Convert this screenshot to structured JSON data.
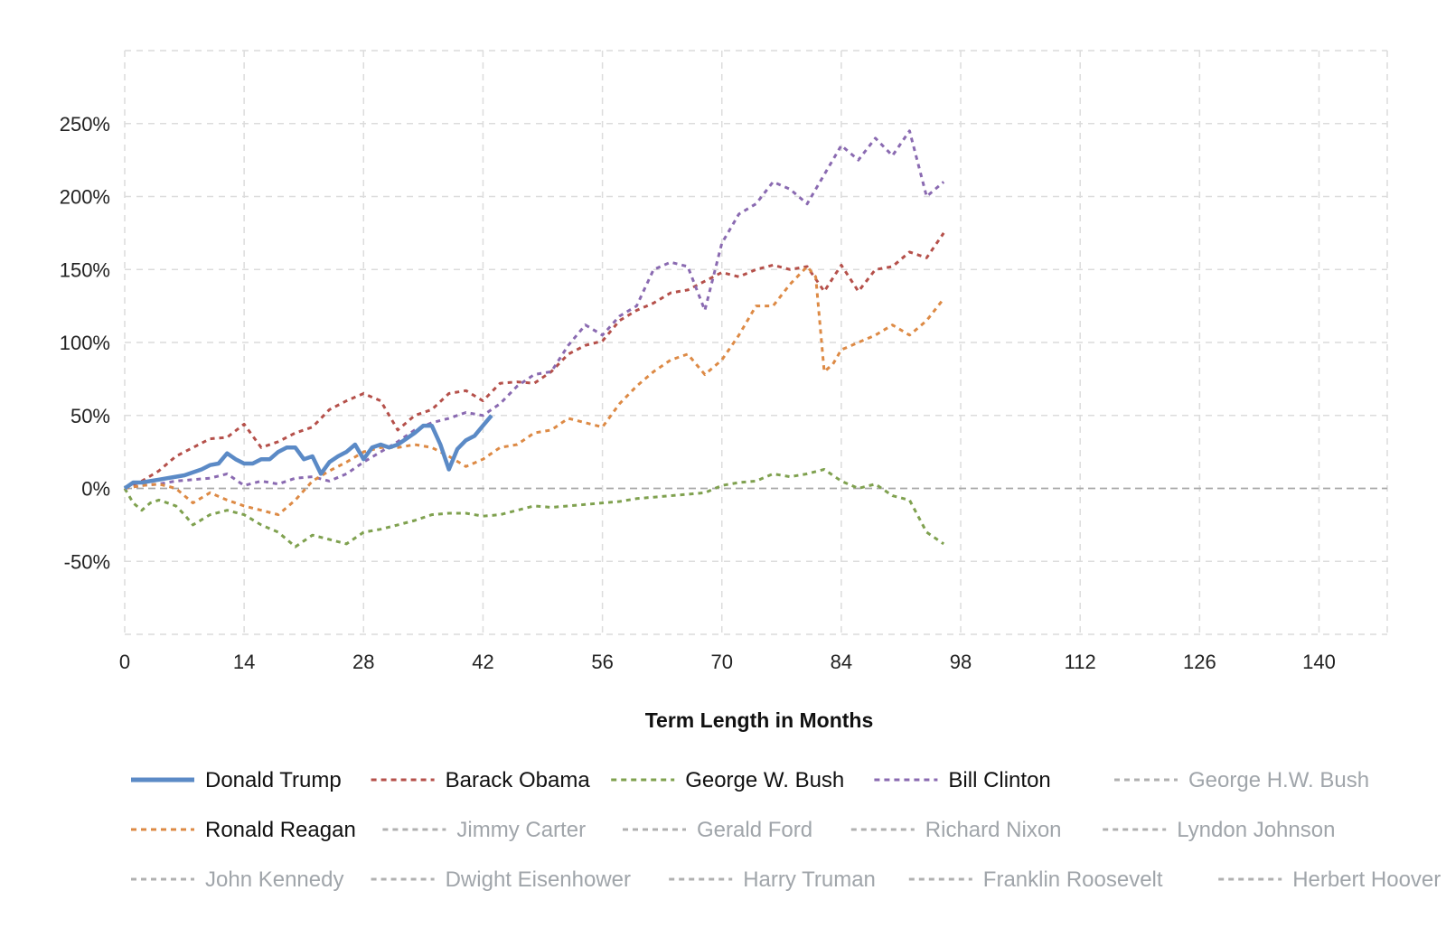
{
  "chart_data": {
    "type": "line",
    "title": "",
    "xlabel": "Term Length in Months",
    "ylabel": "",
    "xlim": [
      0,
      148
    ],
    "ylim": [
      -100,
      300
    ],
    "x_ticks": [
      0,
      14,
      28,
      42,
      56,
      70,
      84,
      98,
      112,
      126,
      140
    ],
    "y_ticks": [
      -50,
      0,
      50,
      100,
      150,
      200,
      250
    ],
    "x_tick_labels": [
      "0",
      "14",
      "28",
      "42",
      "56",
      "70",
      "84",
      "98",
      "112",
      "126",
      "140"
    ],
    "y_tick_labels": [
      "-50%",
      "0%",
      "50%",
      "100%",
      "150%",
      "200%",
      "250%"
    ],
    "grid": true,
    "legend_position": "bottom",
    "series": [
      {
        "name": "Donald Trump",
        "color": "#5b8ac6",
        "style": "solid",
        "active": true,
        "x": [
          0,
          1,
          2,
          3,
          4,
          5,
          6,
          7,
          8,
          9,
          10,
          11,
          12,
          13,
          14,
          15,
          16,
          17,
          18,
          19,
          20,
          21,
          22,
          23,
          24,
          25,
          26,
          27,
          28,
          29,
          30,
          31,
          32,
          33,
          34,
          35,
          36,
          37,
          38,
          39,
          40,
          41,
          42,
          43
        ],
        "y": [
          0,
          4,
          4,
          5,
          6,
          7,
          8,
          9,
          11,
          13,
          16,
          17,
          24,
          20,
          17,
          17,
          20,
          20,
          25,
          28,
          28,
          20,
          22,
          10,
          18,
          22,
          25,
          30,
          20,
          28,
          30,
          28,
          30,
          34,
          38,
          43,
          43,
          30,
          13,
          27,
          33,
          36,
          43,
          50
        ]
      },
      {
        "name": "Barack Obama",
        "color": "#b5504a",
        "style": "dashed",
        "active": true,
        "x": [
          0,
          2,
          4,
          6,
          8,
          10,
          12,
          14,
          16,
          18,
          20,
          22,
          24,
          26,
          28,
          30,
          32,
          34,
          36,
          38,
          40,
          42,
          44,
          46,
          48,
          50,
          52,
          54,
          56,
          58,
          60,
          62,
          64,
          66,
          68,
          70,
          72,
          74,
          76,
          78,
          80,
          82,
          84,
          86,
          88,
          90,
          92,
          94,
          96
        ],
        "y": [
          0,
          5,
          12,
          22,
          28,
          34,
          35,
          44,
          28,
          32,
          38,
          42,
          54,
          60,
          65,
          60,
          40,
          50,
          54,
          65,
          67,
          60,
          72,
          73,
          72,
          80,
          92,
          98,
          101,
          115,
          122,
          127,
          134,
          136,
          142,
          148,
          145,
          150,
          153,
          150,
          152,
          135,
          153,
          135,
          150,
          152,
          162,
          158,
          175
        ]
      },
      {
        "name": "George W. Bush",
        "color": "#7fa14f",
        "style": "dashed",
        "active": true,
        "x": [
          0,
          1,
          2,
          3,
          4,
          5,
          6,
          7,
          8,
          10,
          12,
          14,
          16,
          18,
          20,
          22,
          24,
          26,
          28,
          30,
          32,
          34,
          36,
          38,
          40,
          42,
          44,
          46,
          48,
          50,
          52,
          54,
          56,
          58,
          60,
          62,
          64,
          66,
          68,
          70,
          72,
          74,
          76,
          78,
          80,
          82,
          84,
          86,
          88,
          90,
          92,
          94,
          96
        ],
        "y": [
          0,
          -10,
          -15,
          -10,
          -8,
          -10,
          -12,
          -18,
          -25,
          -18,
          -15,
          -18,
          -25,
          -30,
          -40,
          -32,
          -35,
          -38,
          -30,
          -28,
          -25,
          -22,
          -18,
          -17,
          -17,
          -19,
          -18,
          -15,
          -12,
          -13,
          -12,
          -11,
          -10,
          -9,
          -7,
          -6,
          -5,
          -4,
          -3,
          2,
          4,
          5,
          10,
          8,
          10,
          13,
          5,
          0,
          3,
          -5,
          -8,
          -30,
          -38
        ]
      },
      {
        "name": "Bill Clinton",
        "color": "#8a6ab1",
        "style": "dashed",
        "active": true,
        "x": [
          0,
          2,
          4,
          6,
          8,
          10,
          12,
          14,
          16,
          18,
          20,
          22,
          24,
          26,
          28,
          30,
          32,
          34,
          36,
          38,
          40,
          42,
          44,
          46,
          48,
          50,
          52,
          54,
          56,
          58,
          60,
          62,
          64,
          66,
          68,
          70,
          72,
          74,
          76,
          78,
          80,
          82,
          84,
          86,
          88,
          90,
          92,
          94,
          96
        ],
        "y": [
          0,
          2,
          3,
          5,
          6,
          7,
          10,
          2,
          5,
          3,
          7,
          8,
          5,
          10,
          18,
          25,
          32,
          40,
          45,
          48,
          52,
          50,
          58,
          70,
          78,
          80,
          98,
          112,
          105,
          118,
          125,
          150,
          155,
          152,
          122,
          168,
          188,
          195,
          210,
          205,
          195,
          215,
          235,
          225,
          240,
          228,
          245,
          200,
          210
        ]
      },
      {
        "name": "George H.W. Bush",
        "color": "#b0b0b0",
        "style": "dashed",
        "active": false,
        "x": [],
        "y": []
      },
      {
        "name": "Ronald Reagan",
        "color": "#dd8a45",
        "style": "dashed",
        "active": true,
        "x": [
          0,
          2,
          4,
          6,
          8,
          10,
          12,
          14,
          16,
          18,
          20,
          22,
          24,
          26,
          28,
          30,
          32,
          34,
          36,
          38,
          40,
          42,
          44,
          46,
          48,
          50,
          52,
          54,
          56,
          58,
          60,
          62,
          64,
          66,
          68,
          70,
          72,
          74,
          76,
          78,
          80,
          81,
          82,
          83,
          84,
          86,
          88,
          90,
          92,
          94,
          96
        ],
        "y": [
          0,
          2,
          3,
          0,
          -10,
          -3,
          -8,
          -12,
          -15,
          -18,
          -8,
          5,
          12,
          18,
          25,
          28,
          28,
          30,
          28,
          22,
          15,
          20,
          28,
          30,
          38,
          40,
          48,
          45,
          42,
          58,
          70,
          80,
          88,
          92,
          78,
          88,
          105,
          125,
          125,
          140,
          152,
          145,
          80,
          85,
          95,
          100,
          105,
          112,
          105,
          115,
          130
        ]
      },
      {
        "name": "Jimmy Carter",
        "color": "#b0b0b0",
        "style": "dashed",
        "active": false,
        "x": [],
        "y": []
      },
      {
        "name": "Gerald Ford",
        "color": "#b0b0b0",
        "style": "dashed",
        "active": false,
        "x": [],
        "y": []
      },
      {
        "name": "Richard Nixon",
        "color": "#b0b0b0",
        "style": "dashed",
        "active": false,
        "x": [],
        "y": []
      },
      {
        "name": "Lyndon Johnson",
        "color": "#b0b0b0",
        "style": "dashed",
        "active": false,
        "x": [],
        "y": []
      },
      {
        "name": "John Kennedy",
        "color": "#b0b0b0",
        "style": "dashed",
        "active": false,
        "x": [],
        "y": []
      },
      {
        "name": "Dwight Eisenhower",
        "color": "#b0b0b0",
        "style": "dashed",
        "active": false,
        "x": [],
        "y": []
      },
      {
        "name": "Harry Truman",
        "color": "#b0b0b0",
        "style": "dashed",
        "active": false,
        "x": [],
        "y": []
      },
      {
        "name": "Franklin Roosevelt",
        "color": "#b0b0b0",
        "style": "dashed",
        "active": false,
        "x": [],
        "y": []
      },
      {
        "name": "Herbert Hoover",
        "color": "#b0b0b0",
        "style": "dashed",
        "active": false,
        "x": [],
        "y": []
      }
    ]
  }
}
